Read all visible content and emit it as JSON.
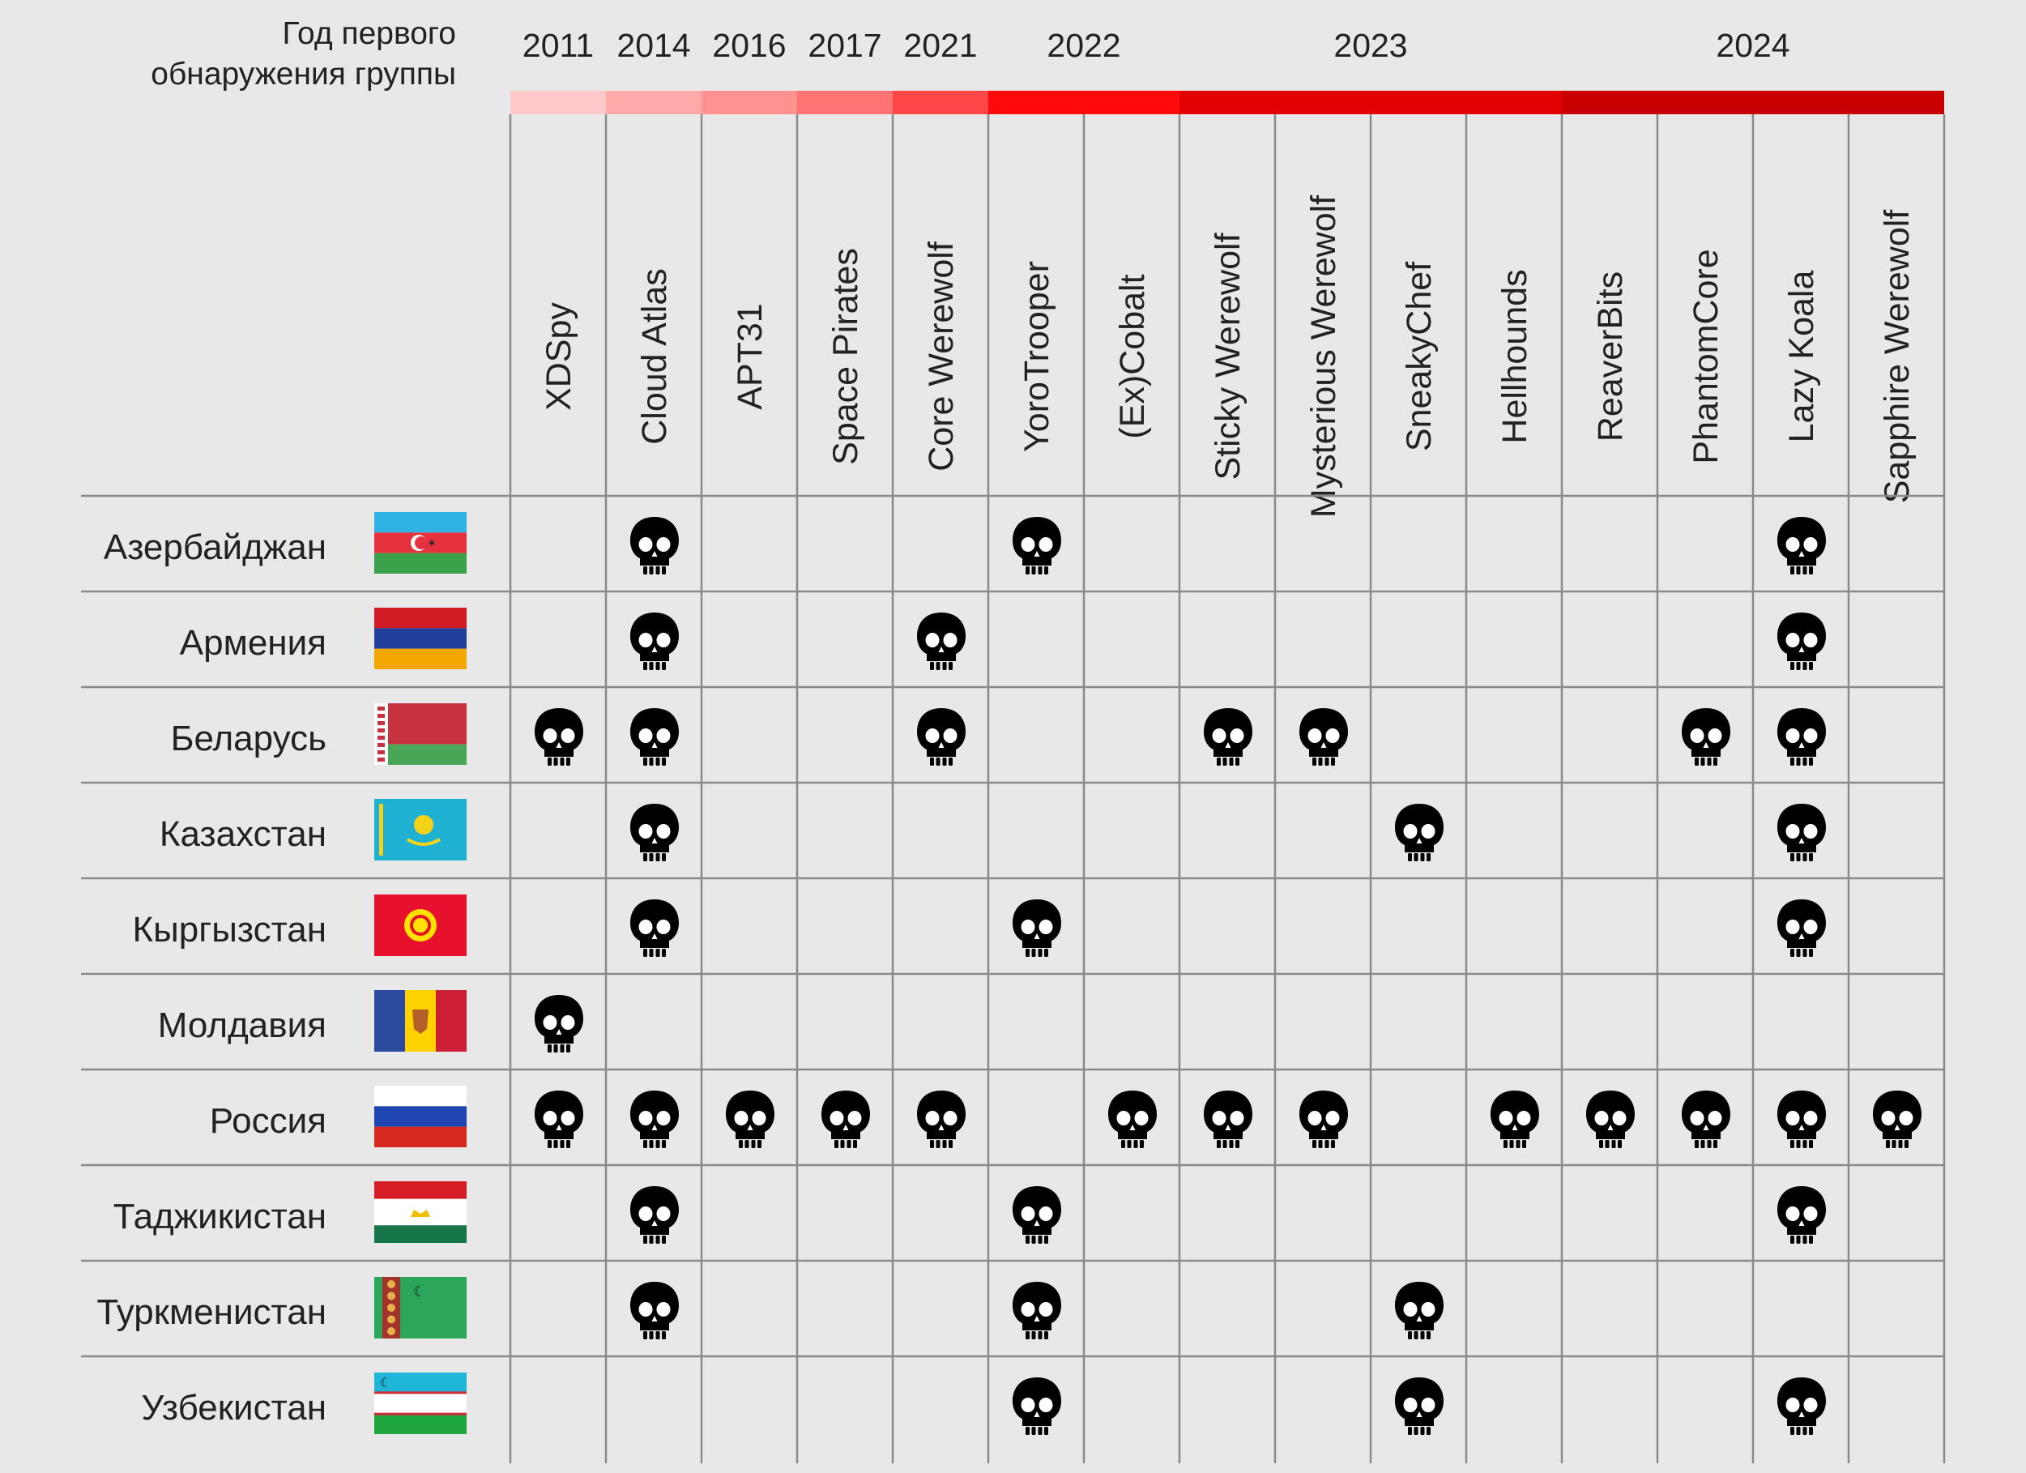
{
  "chart_data": {
    "type": "table",
    "header_label_lines": [
      "Год первого",
      "обнаружения группы"
    ],
    "year_groups": [
      {
        "year": "2011",
        "span": 1,
        "color": "#ffc9c9"
      },
      {
        "year": "2014",
        "span": 1,
        "color": "#ffaaaa"
      },
      {
        "year": "2016",
        "span": 1,
        "color": "#ff9191"
      },
      {
        "year": "2017",
        "span": 1,
        "color": "#ff7373"
      },
      {
        "year": "2021",
        "span": 1,
        "color": "#ff4747"
      },
      {
        "year": "2022",
        "span": 2,
        "color": "#ff0a0a"
      },
      {
        "year": "2023",
        "span": 4,
        "color": "#e20000"
      },
      {
        "year": "2024",
        "span": 4,
        "color": "#c80000"
      }
    ],
    "groups": [
      "XDSpy",
      "Cloud Atlas",
      "APT31",
      "Space Pirates",
      "Core Werewolf",
      "YoroTrooper",
      "(Ex)Cobalt",
      "Sticky Werewolf",
      "Mysterious Werewolf",
      "SneakyChef",
      "Hellhounds",
      "ReaverBits",
      "PhantomCore",
      "Lazy Koala",
      "Sapphire Werewolf"
    ],
    "rows": [
      {
        "country": "Азербайджан",
        "flag": "flag-azerbaijan",
        "attacked": [
          0,
          1,
          0,
          0,
          0,
          1,
          0,
          0,
          0,
          0,
          0,
          0,
          0,
          1,
          0
        ]
      },
      {
        "country": "Армения",
        "flag": "flag-armenia",
        "attacked": [
          0,
          1,
          0,
          0,
          1,
          0,
          0,
          0,
          0,
          0,
          0,
          0,
          0,
          1,
          0
        ]
      },
      {
        "country": "Беларусь",
        "flag": "flag-belarus",
        "attacked": [
          1,
          1,
          0,
          0,
          1,
          0,
          0,
          1,
          1,
          0,
          0,
          0,
          1,
          1,
          0
        ]
      },
      {
        "country": "Казахстан",
        "flag": "flag-kazakhstan",
        "attacked": [
          0,
          1,
          0,
          0,
          0,
          0,
          0,
          0,
          0,
          1,
          0,
          0,
          0,
          1,
          0
        ]
      },
      {
        "country": "Кыргызстан",
        "flag": "flag-kyrgyzstan",
        "attacked": [
          0,
          1,
          0,
          0,
          0,
          1,
          0,
          0,
          0,
          0,
          0,
          0,
          0,
          1,
          0
        ]
      },
      {
        "country": "Молдавия",
        "flag": "flag-moldova",
        "attacked": [
          1,
          0,
          0,
          0,
          0,
          0,
          0,
          0,
          0,
          0,
          0,
          0,
          0,
          0,
          0
        ]
      },
      {
        "country": "Россия",
        "flag": "flag-russia",
        "attacked": [
          1,
          1,
          1,
          1,
          1,
          0,
          1,
          1,
          1,
          0,
          1,
          1,
          1,
          1,
          1
        ]
      },
      {
        "country": "Таджикистан",
        "flag": "flag-tajikistan",
        "attacked": [
          0,
          1,
          0,
          0,
          0,
          1,
          0,
          0,
          0,
          0,
          0,
          0,
          0,
          1,
          0
        ]
      },
      {
        "country": "Туркменистан",
        "flag": "flag-turkmenistan",
        "attacked": [
          0,
          1,
          0,
          0,
          0,
          1,
          0,
          0,
          0,
          1,
          0,
          0,
          0,
          0,
          0
        ]
      },
      {
        "country": "Узбекистан",
        "flag": "flag-uzbekistan",
        "attacked": [
          0,
          0,
          0,
          0,
          0,
          1,
          0,
          0,
          0,
          1,
          0,
          0,
          0,
          1,
          0
        ]
      }
    ],
    "marker_icon": "skull-icon"
  }
}
